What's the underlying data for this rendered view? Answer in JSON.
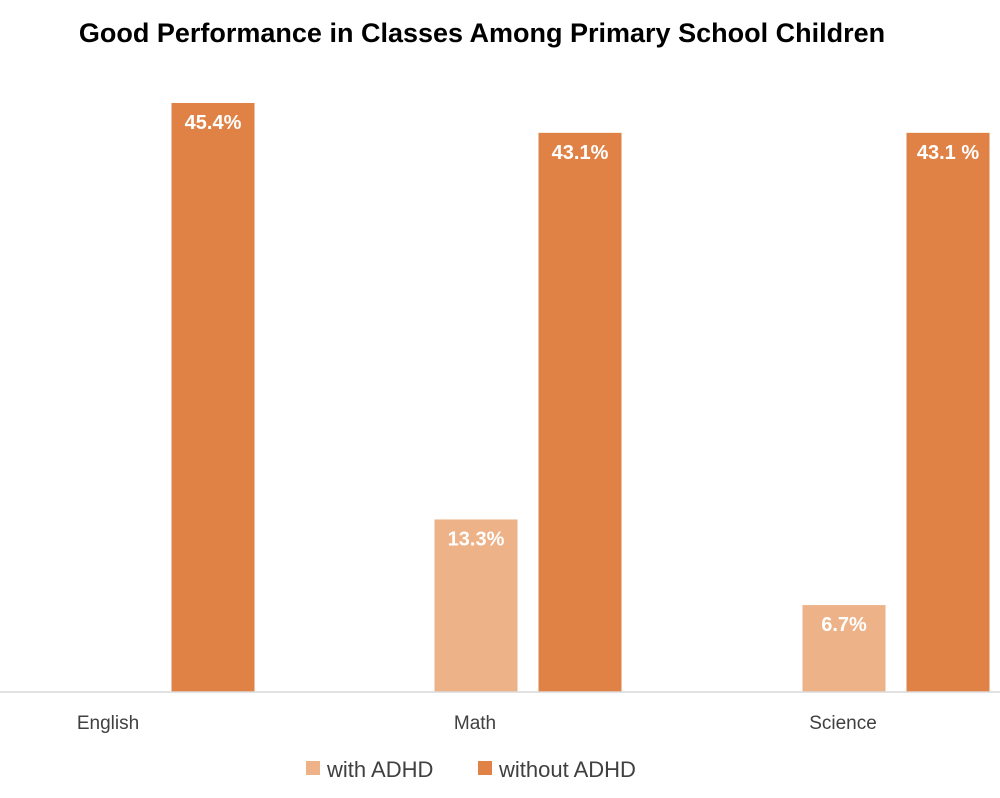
{
  "chart_data": {
    "type": "bar",
    "title": "Good Performance in Classes Among Primary School Children",
    "xlabel": "",
    "ylabel": "",
    "categories": [
      "English",
      "Math",
      "Science"
    ],
    "ylim": [
      0,
      45.4
    ],
    "grid": false,
    "legend_position": "bottom",
    "series": [
      {
        "name": "with ADHD",
        "color": "#EDB287",
        "values": [
          null,
          13.3,
          6.7
        ],
        "labels": [
          "",
          "13.3%",
          "6.7%"
        ]
      },
      {
        "name": "without ADHD",
        "color": "#E08245",
        "values": [
          45.4,
          43.1,
          43.1
        ],
        "labels": [
          "45.4%",
          "43.1%",
          "43.1 %"
        ]
      }
    ]
  }
}
